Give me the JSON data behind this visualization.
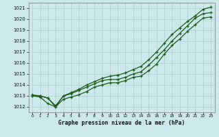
{
  "title": "Graphe pression niveau de la mer (hPa)",
  "bg_color": "#cce8ea",
  "grid_color": "#aacccc",
  "line_color": "#1a5c1a",
  "x_min": 0,
  "x_max": 23,
  "y_min": 1011.5,
  "y_max": 1021.5,
  "yticks": [
    1012,
    1013,
    1014,
    1015,
    1016,
    1017,
    1018,
    1019,
    1020,
    1021
  ],
  "series1": [
    1013.0,
    1013.0,
    1012.8,
    1012.0,
    1013.0,
    1013.2,
    1013.5,
    1013.8,
    1014.1,
    1014.4,
    1014.5,
    1014.5,
    1014.7,
    1015.0,
    1015.2,
    1015.8,
    1016.5,
    1017.2,
    1018.0,
    1018.7,
    1019.4,
    1020.1,
    1020.5,
    1020.6
  ],
  "series2": [
    1013.1,
    1013.0,
    1012.8,
    1012.1,
    1013.0,
    1013.3,
    1013.6,
    1014.0,
    1014.3,
    1014.6,
    1014.8,
    1014.9,
    1015.1,
    1015.4,
    1015.7,
    1016.3,
    1017.0,
    1017.8,
    1018.6,
    1019.2,
    1019.8,
    1020.3,
    1020.9,
    1021.1
  ],
  "series3": [
    1013.0,
    1012.9,
    1012.3,
    1012.0,
    1012.7,
    1012.9,
    1013.1,
    1013.4,
    1013.8,
    1014.0,
    1014.2,
    1014.2,
    1014.4,
    1014.7,
    1014.8,
    1015.3,
    1015.9,
    1016.8,
    1017.6,
    1018.2,
    1018.9,
    1019.5,
    1020.1,
    1020.2
  ]
}
